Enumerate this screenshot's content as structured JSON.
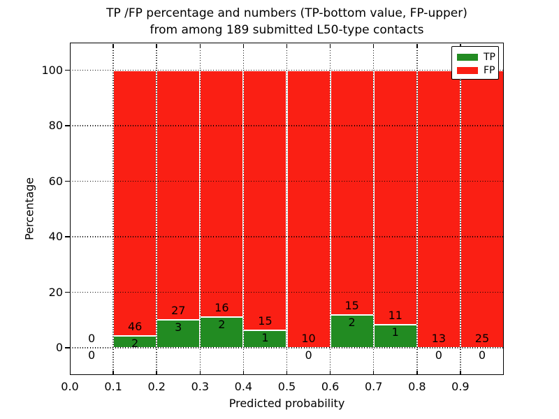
{
  "title": {
    "line1": "TP /FP percentage and numbers (TP-bottom value, FP-upper)",
    "line2": "from among 189 submitted L50-type contacts"
  },
  "axes": {
    "xlabel": "Predicted probability",
    "ylabel": "Percentage",
    "x_tick_labels": [
      "0.0",
      "0.1",
      "0.2",
      "0.3",
      "0.4",
      "0.5",
      "0.6",
      "0.7",
      "0.8",
      "0.9"
    ],
    "x_tick_values": [
      0.0,
      0.1,
      0.2,
      0.3,
      0.4,
      0.5,
      0.6,
      0.7,
      0.8,
      0.9
    ],
    "x_grid_values": [
      0.1,
      0.2,
      0.3,
      0.4,
      0.5,
      0.6,
      0.7,
      0.8,
      0.9
    ],
    "y_tick_labels": [
      "0",
      "20",
      "40",
      "60",
      "80",
      "100"
    ],
    "y_tick_values": [
      0,
      20,
      40,
      60,
      80,
      100
    ]
  },
  "colors": {
    "tp": "#228b22",
    "fp": "#fa1f14",
    "grid": "#000000",
    "text": "#000000",
    "background": "#ffffff",
    "bar_edge": "#ffffff"
  },
  "chart_data": {
    "type": "bar",
    "stacked": true,
    "normalized_to_percent": true,
    "title": "TP /FP percentage and numbers (TP-bottom value, FP-upper) from among 189 submitted L50-type contacts",
    "xlabel": "Predicted probability",
    "ylabel": "Percentage",
    "xlim": [
      0.0,
      1.0
    ],
    "ylim": [
      -9.8,
      109.8
    ],
    "grid": true,
    "legend_position": "upper right",
    "total_contacts": 189,
    "bin_width": 0.1,
    "bin_edges": [
      0.0,
      0.1,
      0.2,
      0.3,
      0.4,
      0.5,
      0.6,
      0.7,
      0.8,
      0.9,
      1.0
    ],
    "series": [
      {
        "name": "TP",
        "color": "#228b22",
        "counts": [
          0,
          2,
          3,
          2,
          1,
          0,
          2,
          1,
          0,
          0
        ],
        "percent": [
          0,
          4.17,
          10.0,
          11.11,
          6.25,
          0,
          11.76,
          8.33,
          0,
          0
        ]
      },
      {
        "name": "FP",
        "color": "#fa1f14",
        "counts": [
          0,
          46,
          27,
          16,
          15,
          10,
          15,
          11,
          13,
          25
        ],
        "percent": [
          0,
          95.83,
          90.0,
          88.89,
          93.75,
          100,
          88.24,
          91.67,
          100,
          100
        ]
      }
    ]
  }
}
